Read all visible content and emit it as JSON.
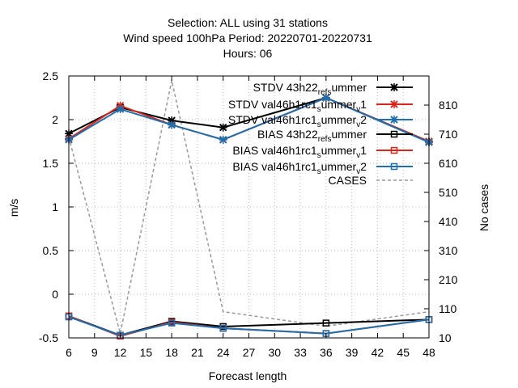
{
  "chart_data": {
    "type": "line",
    "title_lines": [
      "Selection: ALL using    31 stations",
      "Wind speed 100hPa   Period: 20220701-20220731",
      "Hours:  06"
    ],
    "xlabel": "Forecast length",
    "ylabel": "m/s",
    "y2label": "No cases",
    "xlim": [
      6,
      48
    ],
    "ylim": [
      -0.5,
      2.5
    ],
    "y2lim": [
      10,
      910
    ],
    "xticks": [
      "6",
      "9",
      "12",
      "15",
      "18",
      "21",
      "24",
      "27",
      "30",
      "33",
      "36",
      "39",
      "42",
      "45",
      "48"
    ],
    "yticks": [
      "2.5",
      "2",
      "1.5",
      "1",
      "0.5",
      "0",
      "-0.5"
    ],
    "y2ticks": [
      "810",
      "710",
      "610",
      "510",
      "410",
      "310",
      "210",
      "110",
      "10"
    ],
    "grid": true,
    "legend_position": "top-right",
    "series": [
      {
        "label": "STDV 43h22_ref_summer",
        "base": "STDV 43h22",
        "sub": "ref",
        "mid": "",
        "sub2": "s",
        "tail": "ummer",
        "color": "#000000",
        "marker": "x",
        "axis": "y1",
        "x": [
          6,
          12,
          18,
          24,
          36,
          48
        ],
        "y": [
          1.84,
          2.14,
          1.99,
          1.91,
          2.25,
          1.75
        ]
      },
      {
        "label": "STDV val46h1rc1_summer_v1",
        "base": "STDV val46h1rc1",
        "sub": "s",
        "mid": "ummer",
        "sub2": "v",
        "tail": "1",
        "color": "#d9261c",
        "marker": "x",
        "axis": "y1",
        "x": [
          6,
          12,
          18,
          24,
          36,
          48
        ],
        "y": [
          1.78,
          2.16,
          1.94,
          1.77,
          2.25,
          1.75
        ]
      },
      {
        "label": "STDV val46h1rc1_summer_v2",
        "base": "STDV val46h1rc1",
        "sub": "s",
        "mid": "ummer",
        "sub2": "v",
        "tail": "2",
        "color": "#1f6fad",
        "marker": "x",
        "axis": "y1",
        "x": [
          6,
          12,
          18,
          24,
          36,
          48
        ],
        "y": [
          1.77,
          2.12,
          1.94,
          1.77,
          2.25,
          1.74
        ]
      },
      {
        "label": "BIAS 43h22_ref_summer",
        "base": "BIAS 43h22",
        "sub": "ref",
        "mid": "",
        "sub2": "s",
        "tail": "ummer",
        "color": "#000000",
        "marker": "square",
        "axis": "y1",
        "x": [
          6,
          12,
          18,
          24,
          36,
          48
        ],
        "y": [
          -0.25,
          -0.47,
          -0.31,
          -0.37,
          -0.33,
          -0.29
        ]
      },
      {
        "label": "BIAS val46h1rc1_summer_v1",
        "base": "BIAS val46h1rc1",
        "sub": "s",
        "mid": "ummer",
        "sub2": "v",
        "tail": "1",
        "color": "#d9261c",
        "marker": "square",
        "axis": "y1",
        "x": [
          6,
          12,
          18,
          24,
          36,
          48
        ],
        "y": [
          -0.25,
          -0.48,
          -0.32,
          -0.39,
          -0.45,
          -0.29
        ]
      },
      {
        "label": "BIAS val46h1rc1_summer_v2",
        "base": "BIAS val46h1rc1",
        "sub": "s",
        "mid": "ummer",
        "sub2": "v",
        "tail": "2",
        "color": "#1f6fad",
        "marker": "square",
        "axis": "y1",
        "x": [
          6,
          12,
          18,
          24,
          36,
          48
        ],
        "y": [
          -0.26,
          -0.47,
          -0.33,
          -0.39,
          -0.45,
          -0.29
        ]
      },
      {
        "label": "CASES",
        "base": "CASES",
        "sub": "",
        "mid": "",
        "sub2": "",
        "tail": "",
        "color": "#999999",
        "marker": "none",
        "axis": "y2",
        "dashed": true,
        "x": [
          6,
          12,
          18,
          24,
          36,
          48
        ],
        "y": [
          700,
          25,
          895,
          100,
          50,
          100
        ]
      }
    ]
  }
}
